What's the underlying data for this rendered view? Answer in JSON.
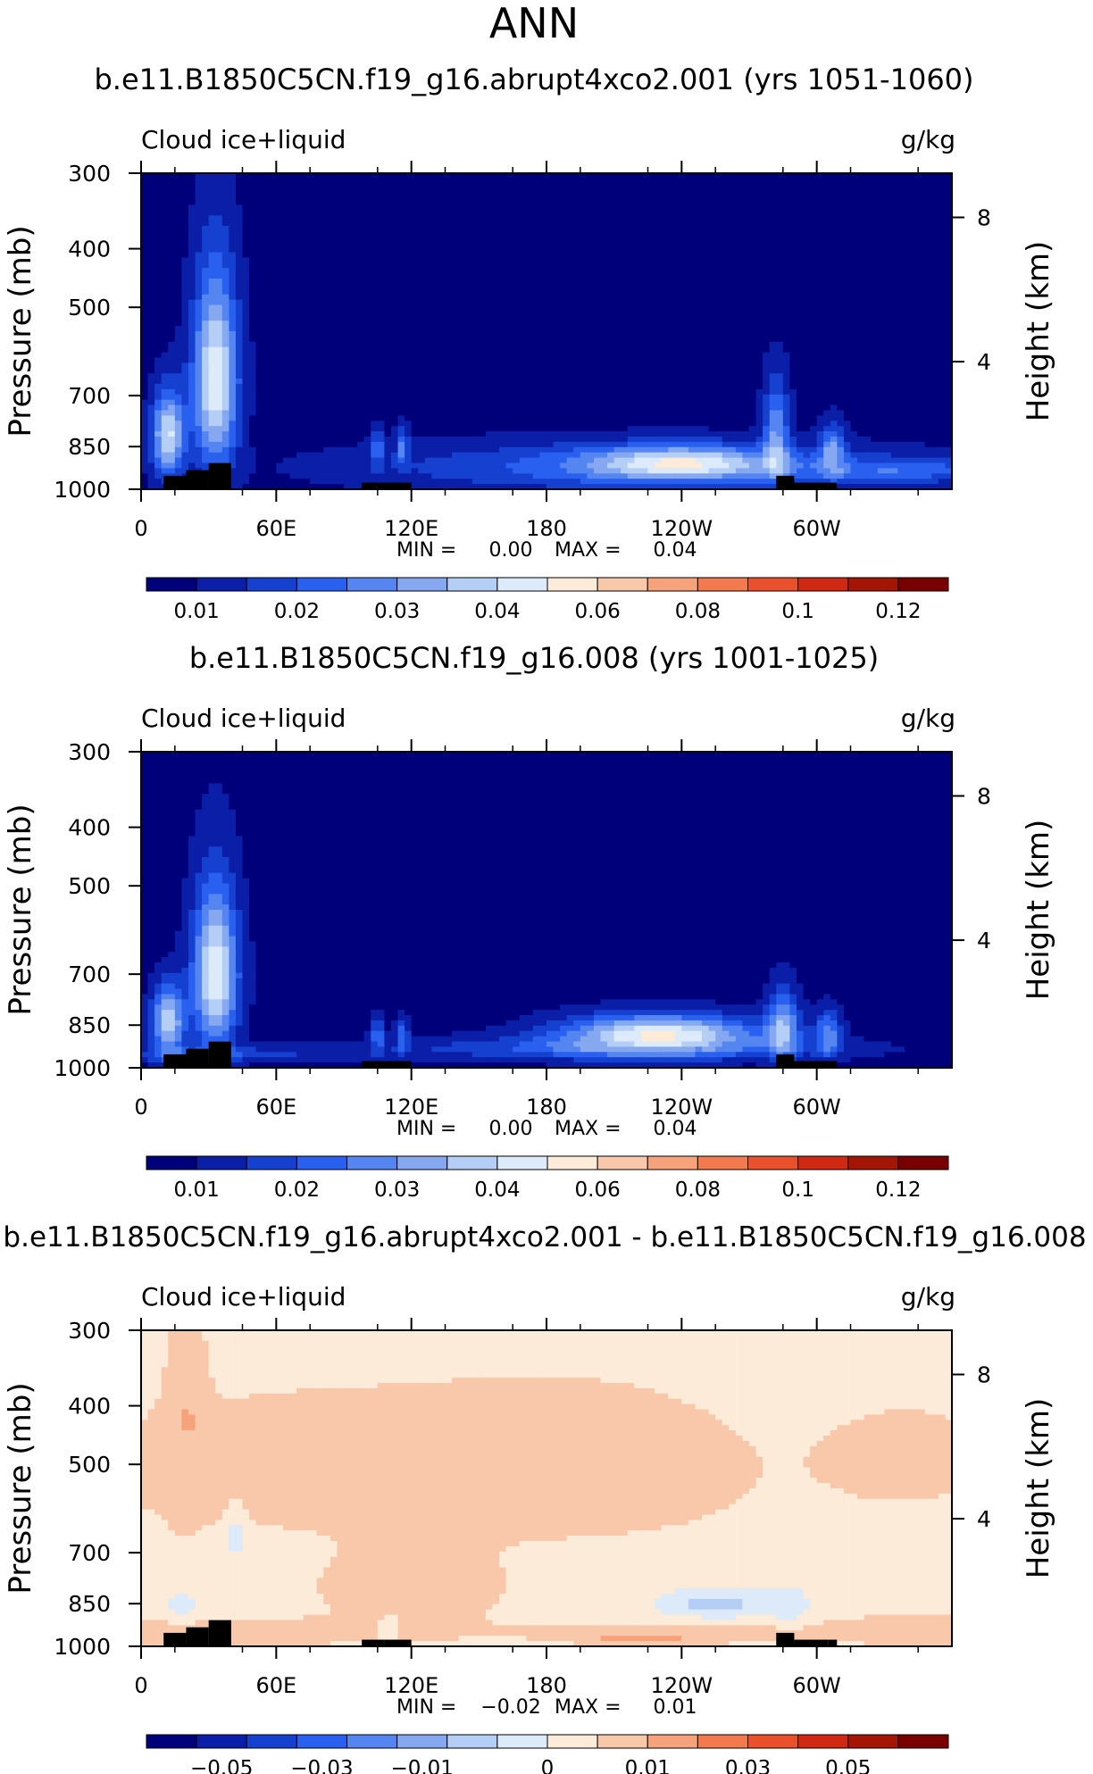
{
  "page_title": "ANN",
  "chart_data": [
    {
      "type": "heatmap",
      "title": "b.e11.B1850C5CN.f19_g16.abrupt4xco2.001 (yrs 1051-1060)",
      "left_label": "Cloud  ice+liquid",
      "right_label": "g/kg",
      "ylabel": "Pressure  (mb)",
      "ylabel_right": "Height  (km)",
      "x_ticks": [
        "0",
        "60E",
        "120E",
        "180",
        "120W",
        "60W"
      ],
      "y_ticks": [
        "300",
        "400",
        "500",
        "700",
        "850",
        "1000"
      ],
      "y_right_ticks": [
        "8",
        "4"
      ],
      "min_label": "MIN  =",
      "min_value": "0.00",
      "max_label": "MAX  =",
      "max_value": "0.04",
      "colorbar_labels": [
        "0.01",
        "0.02",
        "0.03",
        "0.04",
        "0.06",
        "0.08",
        "0.1",
        "0.12"
      ],
      "colorbar_colors": [
        "#00007a",
        "#0a1ea8",
        "#1540d0",
        "#2a60f0",
        "#5585f0",
        "#86a8f0",
        "#b5cef5",
        "#dceafa",
        "#fcebd8",
        "#f9c8aa",
        "#f6a27a",
        "#f27a4e",
        "#e9502b",
        "#d02812",
        "#a51505",
        "#7a0000"
      ],
      "background_level": 0.003,
      "features": [
        {
          "lon": 12,
          "p": 815,
          "w": 5,
          "h": 95,
          "level": 0.036
        },
        {
          "lon": 33,
          "p": 660,
          "w": 7,
          "h": 170,
          "level": 0.04
        },
        {
          "lon": 105,
          "p": 850,
          "w": 2,
          "h": 45,
          "level": 0.018
        },
        {
          "lon": 116,
          "p": 850,
          "w": 2,
          "h": 45,
          "level": 0.018
        },
        {
          "lon": 220,
          "p": 920,
          "w": 80,
          "h": 60,
          "level": 0.018
        },
        {
          "lon": 240,
          "p": 905,
          "w": 28,
          "h": 40,
          "level": 0.028
        },
        {
          "lon": 282,
          "p": 800,
          "w": 4,
          "h": 110,
          "level": 0.024
        },
        {
          "lon": 307,
          "p": 860,
          "w": 4,
          "h": 60,
          "level": 0.022
        },
        {
          "lon": 340,
          "p": 930,
          "w": 30,
          "h": 30,
          "level": 0.015
        }
      ],
      "topography": [
        [
          10,
          950
        ],
        [
          20,
          930
        ],
        [
          30,
          905
        ],
        [
          40,
          975
        ],
        [
          98,
          975
        ],
        [
          108,
          975
        ],
        [
          120,
          975
        ],
        [
          282,
          950
        ],
        [
          290,
          975
        ],
        [
          305,
          975
        ]
      ]
    },
    {
      "type": "heatmap",
      "title": "b.e11.B1850C5CN.f19_g16.008 (yrs 1001-1025)",
      "left_label": "Cloud  ice+liquid",
      "right_label": "g/kg",
      "ylabel": "Pressure  (mb)",
      "ylabel_right": "Height  (km)",
      "x_ticks": [
        "0",
        "60E",
        "120E",
        "180",
        "120W",
        "60W"
      ],
      "y_ticks": [
        "300",
        "400",
        "500",
        "700",
        "850",
        "1000"
      ],
      "y_right_ticks": [
        "8",
        "4"
      ],
      "min_label": "MIN  =",
      "min_value": "0.00",
      "max_label": "MAX  =",
      "max_value": "0.04",
      "colorbar_labels": [
        "0.01",
        "0.02",
        "0.03",
        "0.04",
        "0.06",
        "0.08",
        "0.1",
        "0.12"
      ],
      "colorbar_colors": [
        "#00007a",
        "#0a1ea8",
        "#1540d0",
        "#2a60f0",
        "#5585f0",
        "#86a8f0",
        "#b5cef5",
        "#dceafa",
        "#fcebd8",
        "#f9c8aa",
        "#f6a27a",
        "#f27a4e",
        "#e9502b",
        "#d02812",
        "#a51505",
        "#7a0000"
      ],
      "background_level": 0.003,
      "features": [
        {
          "lon": 12,
          "p": 840,
          "w": 5,
          "h": 80,
          "level": 0.034
        },
        {
          "lon": 33,
          "p": 700,
          "w": 7,
          "h": 150,
          "level": 0.04
        },
        {
          "lon": 105,
          "p": 880,
          "w": 2,
          "h": 40,
          "level": 0.018
        },
        {
          "lon": 116,
          "p": 880,
          "w": 2,
          "h": 40,
          "level": 0.018
        },
        {
          "lon": 230,
          "p": 880,
          "w": 30,
          "h": 45,
          "level": 0.04
        },
        {
          "lon": 205,
          "p": 930,
          "w": 70,
          "h": 30,
          "level": 0.015
        },
        {
          "lon": 285,
          "p": 850,
          "w": 5,
          "h": 80,
          "level": 0.026
        },
        {
          "lon": 305,
          "p": 880,
          "w": 4,
          "h": 55,
          "level": 0.022
        },
        {
          "lon": 30,
          "p": 950,
          "w": 40,
          "h": 20,
          "level": 0.012
        }
      ],
      "topography": [
        [
          10,
          950
        ],
        [
          20,
          930
        ],
        [
          30,
          905
        ],
        [
          40,
          975
        ],
        [
          98,
          975
        ],
        [
          108,
          975
        ],
        [
          120,
          975
        ],
        [
          282,
          950
        ],
        [
          290,
          975
        ],
        [
          305,
          975
        ]
      ]
    },
    {
      "type": "heatmap",
      "title": "b.e11.B1850C5CN.f19_g16.abrupt4xco2.001 - b.e11.B1850C5CN.f19_g16.008",
      "left_label": "Cloud  ice+liquid",
      "right_label": "g/kg",
      "ylabel": "Pressure  (mb)",
      "ylabel_right": "Height  (km)",
      "x_ticks": [
        "0",
        "60E",
        "120E",
        "180",
        "120W",
        "60W"
      ],
      "y_ticks": [
        "300",
        "400",
        "500",
        "700",
        "850",
        "1000"
      ],
      "y_right_ticks": [
        "8",
        "4"
      ],
      "min_label": "MIN  =",
      "min_value": "−0.02",
      "max_label": "MAX  =",
      "max_value": "0.01",
      "colorbar_labels": [
        "−0.05",
        "−0.03",
        "−0.01",
        "0",
        "0.01",
        "0.03",
        "0.05"
      ],
      "colorbar_colors": [
        "#00007a",
        "#0a1ea8",
        "#1540d0",
        "#2a60f0",
        "#5585f0",
        "#86a8f0",
        "#b5cef5",
        "#dceafa",
        "#fcebd8",
        "#f9c8aa",
        "#f6a27a",
        "#f27a4e",
        "#e9502b",
        "#d02812",
        "#a51505",
        "#7a0000"
      ],
      "background_level": -0.002,
      "features": [
        {
          "lon": 75,
          "p": 505,
          "w": 75,
          "h": 90,
          "level": 0.003
        },
        {
          "lon": 195,
          "p": 510,
          "w": 55,
          "h": 100,
          "level": 0.003
        },
        {
          "lon": 340,
          "p": 490,
          "w": 25,
          "h": 60,
          "level": 0.003
        },
        {
          "lon": 20,
          "p": 400,
          "w": 6,
          "h": 150,
          "level": 0.003
        },
        {
          "lon": 120,
          "p": 800,
          "w": 30,
          "h": 90,
          "level": 0.003
        },
        {
          "lon": 30,
          "p": 950,
          "w": 60,
          "h": 35,
          "level": 0.003
        },
        {
          "lon": 240,
          "p": 950,
          "w": 50,
          "h": 30,
          "level": 0.003
        },
        {
          "lon": 345,
          "p": 940,
          "w": 25,
          "h": 40,
          "level": 0.003
        },
        {
          "lon": 220,
          "p": 975,
          "w": 15,
          "h": 12,
          "level": 0.006
        },
        {
          "lon": 18,
          "p": 860,
          "w": 5,
          "h": 35,
          "level": -0.008
        },
        {
          "lon": 42,
          "p": 650,
          "w": 3,
          "h": 50,
          "level": -0.008
        },
        {
          "lon": 255,
          "p": 850,
          "w": 18,
          "h": 35,
          "level": -0.012
        },
        {
          "lon": 288,
          "p": 860,
          "w": 6,
          "h": 45,
          "level": -0.008
        },
        {
          "lon": 110,
          "p": 930,
          "w": 3,
          "h": 25,
          "level": -0.008
        }
      ],
      "topography": [
        [
          10,
          950
        ],
        [
          20,
          930
        ],
        [
          30,
          905
        ],
        [
          40,
          975
        ],
        [
          98,
          975
        ],
        [
          108,
          975
        ],
        [
          120,
          975
        ],
        [
          282,
          950
        ],
        [
          290,
          975
        ],
        [
          305,
          975
        ]
      ]
    }
  ]
}
